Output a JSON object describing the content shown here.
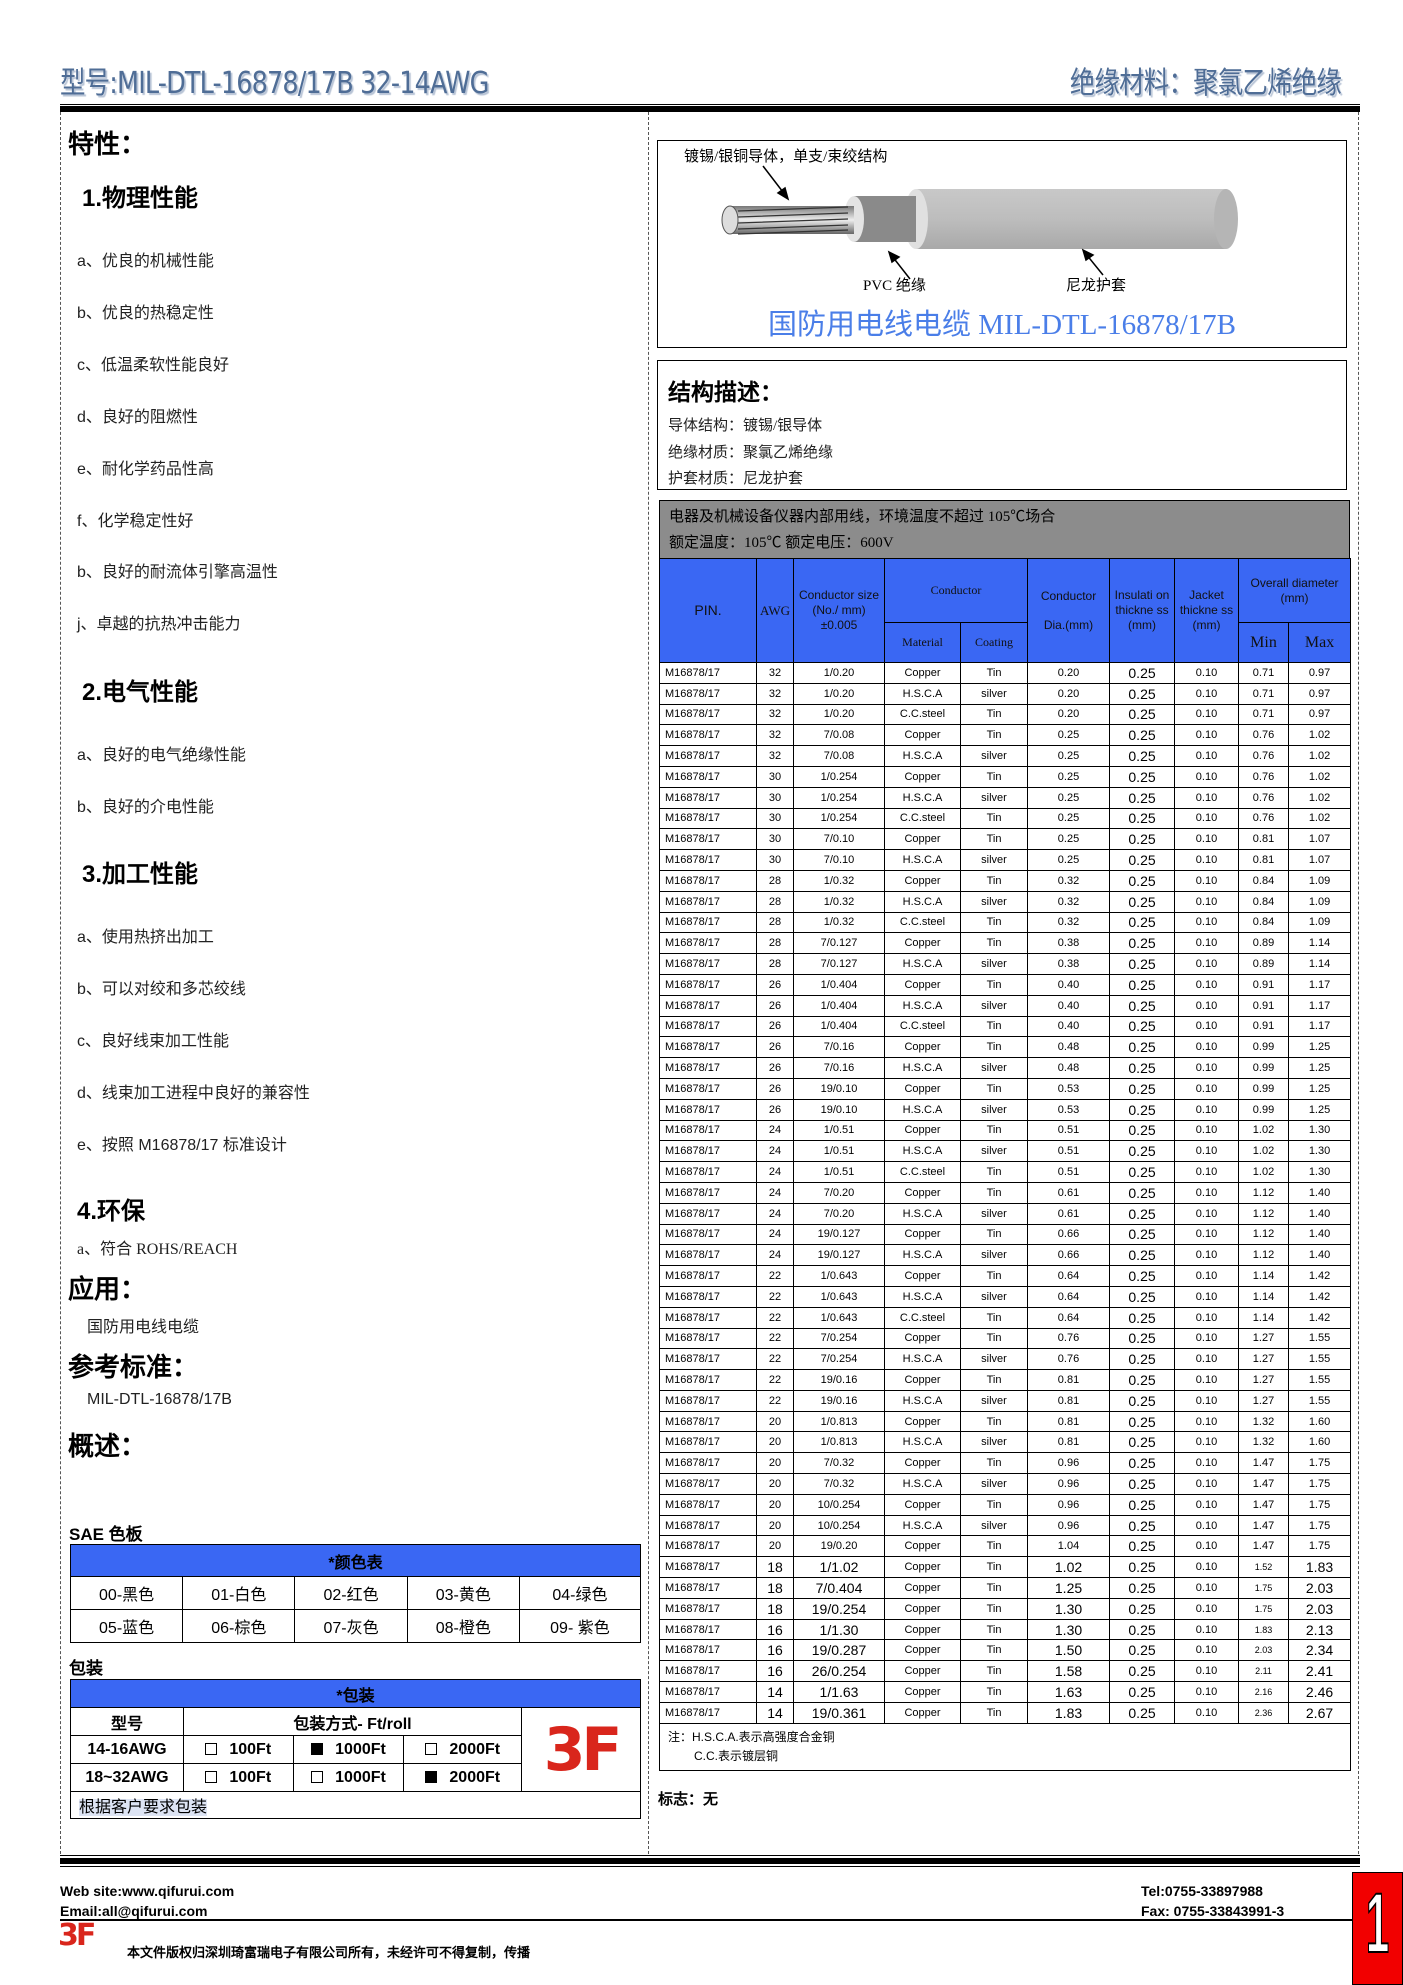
{
  "header": {
    "model": "型号:MIL-DTL-16878/17B 32-14AWG",
    "material": "绝缘材料：聚氯乙烯绝缘"
  },
  "left": {
    "features_title": "特性：",
    "sections": [
      {
        "title": "1.物理性能",
        "items": [
          "a、优良的机械性能",
          "b、优良的热稳定性",
          "c、低温柔软性能良好",
          "d、良好的阻燃性",
          "e、耐化学药品性高",
          "f、化学稳定性好",
          "b、良好的耐流体引擎高温性",
          "j、卓越的抗热冲击能力"
        ]
      },
      {
        "title": "2.电气性能",
        "items": [
          "a、良好的电气绝缘性能",
          "b、良好的介电性能"
        ]
      },
      {
        "title": "3.加工性能",
        "items": [
          "a、使用热挤出加工",
          "b、可以对绞和多芯绞线",
          "c、良好线束加工性能",
          "d、线束加工进程中良好的兼容性",
          "e、按照 M16878/17 标准设计"
        ]
      },
      {
        "title": "4.环保",
        "items": [
          "a、符合 ROHS/REACH"
        ]
      }
    ],
    "application_title": "应用：",
    "application": "国防用电线电缆",
    "standard_title": "参考标准：",
    "standard": "MIL-DTL-16878/17B",
    "overview_title": "概述：",
    "color_board_title": "SAE 色板",
    "color_table": {
      "header": "*颜色表",
      "rows": [
        [
          "00-黑色",
          "01-白色",
          "02-红色",
          "03-黄色",
          "04-绿色"
        ],
        [
          "05-蓝色",
          "06-棕色",
          "07-灰色",
          "08-橙色",
          "09- 紫色"
        ]
      ]
    },
    "packing_title": "包装",
    "packing_table": {
      "header": "*包装",
      "col_model": "型号",
      "col_method": "包装方式- Ft/roll",
      "rows": [
        {
          "model": "14-16AWG",
          "options": [
            {
              "label": "100Ft",
              "checked": false
            },
            {
              "label": "1000Ft",
              "checked": true
            },
            {
              "label": "2000Ft",
              "checked": false
            }
          ]
        },
        {
          "model": "18~32AWG",
          "options": [
            {
              "label": "100Ft",
              "checked": false
            },
            {
              "label": "1000Ft",
              "checked": false
            },
            {
              "label": "2000Ft",
              "checked": true
            }
          ]
        }
      ],
      "note": "根据客户要求包装",
      "logo": "3F"
    }
  },
  "diagram": {
    "conductor_label": "镀锡/银铜导体，单支/束绞结构",
    "insulation_label": "PVC  绝缘",
    "jacket_label": "尼龙护套",
    "title": "国防用电线电缆  MIL-DTL-16878/17B"
  },
  "structure": {
    "title": "结构描述：",
    "lines": [
      "导体结构：镀锡/银导体",
      "绝缘材质：聚氯乙烯绝缘",
      "护套材质：尼龙护套"
    ]
  },
  "usage": {
    "line1": "电器及机械设备仪器内部用线，环境温度不超过  105℃场合",
    "line2": "额定温度：105℃  额定电压：600V"
  },
  "spec_table": {
    "headers": {
      "pin": "PIN.",
      "awg": "AWG",
      "size": "Conductor size (No./ mm) ±0.005",
      "conductor": "Conductor",
      "material": "Material",
      "coating": "Coating",
      "dia": "Conductor",
      "dia2": "Dia.(mm)",
      "insulation": "Insulati on thickne ss (mm)",
      "jacket": "Jacket thickne ss (mm)",
      "overall": "Overall diameter (mm)",
      "min": "Min",
      "max": "Max"
    },
    "rows": [
      [
        "M16878/17",
        "32",
        "1/0.20",
        "Copper",
        "Tin",
        "0.20",
        "0.25",
        "0.10",
        "0.71",
        "0.97"
      ],
      [
        "M16878/17",
        "32",
        "1/0.20",
        "H.S.C.A",
        "silver",
        "0.20",
        "0.25",
        "0.10",
        "0.71",
        "0.97"
      ],
      [
        "M16878/17",
        "32",
        "1/0.20",
        "C.C.steel",
        "Tin",
        "0.20",
        "0.25",
        "0.10",
        "0.71",
        "0.97"
      ],
      [
        "M16878/17",
        "32",
        "7/0.08",
        "Copper",
        "Tin",
        "0.25",
        "0.25",
        "0.10",
        "0.76",
        "1.02"
      ],
      [
        "M16878/17",
        "32",
        "7/0.08",
        "H.S.C.A",
        "silver",
        "0.25",
        "0.25",
        "0.10",
        "0.76",
        "1.02"
      ],
      [
        "M16878/17",
        "30",
        "1/0.254",
        "Copper",
        "Tin",
        "0.25",
        "0.25",
        "0.10",
        "0.76",
        "1.02"
      ],
      [
        "M16878/17",
        "30",
        "1/0.254",
        "H.S.C.A",
        "silver",
        "0.25",
        "0.25",
        "0.10",
        "0.76",
        "1.02"
      ],
      [
        "M16878/17",
        "30",
        "1/0.254",
        "C.C.steel",
        "Tin",
        "0.25",
        "0.25",
        "0.10",
        "0.76",
        "1.02"
      ],
      [
        "M16878/17",
        "30",
        "7/0.10",
        "Copper",
        "Tin",
        "0.25",
        "0.25",
        "0.10",
        "0.81",
        "1.07"
      ],
      [
        "M16878/17",
        "30",
        "7/0.10",
        "H.S.C.A",
        "silver",
        "0.25",
        "0.25",
        "0.10",
        "0.81",
        "1.07"
      ],
      [
        "M16878/17",
        "28",
        "1/0.32",
        "Copper",
        "Tin",
        "0.32",
        "0.25",
        "0.10",
        "0.84",
        "1.09"
      ],
      [
        "M16878/17",
        "28",
        "1/0.32",
        "H.S.C.A",
        "silver",
        "0.32",
        "0.25",
        "0.10",
        "0.84",
        "1.09"
      ],
      [
        "M16878/17",
        "28",
        "1/0.32",
        "C.C.steel",
        "Tin",
        "0.32",
        "0.25",
        "0.10",
        "0.84",
        "1.09"
      ],
      [
        "M16878/17",
        "28",
        "7/0.127",
        "Copper",
        "Tin",
        "0.38",
        "0.25",
        "0.10",
        "0.89",
        "1.14"
      ],
      [
        "M16878/17",
        "28",
        "7/0.127",
        "H.S.C.A",
        "silver",
        "0.38",
        "0.25",
        "0.10",
        "0.89",
        "1.14"
      ],
      [
        "M16878/17",
        "26",
        "1/0.404",
        "Copper",
        "Tin",
        "0.40",
        "0.25",
        "0.10",
        "0.91",
        "1.17"
      ],
      [
        "M16878/17",
        "26",
        "1/0.404",
        "H.S.C.A",
        "silver",
        "0.40",
        "0.25",
        "0.10",
        "0.91",
        "1.17"
      ],
      [
        "M16878/17",
        "26",
        "1/0.404",
        "C.C.steel",
        "Tin",
        "0.40",
        "0.25",
        "0.10",
        "0.91",
        "1.17"
      ],
      [
        "M16878/17",
        "26",
        "7/0.16",
        "Copper",
        "Tin",
        "0.48",
        "0.25",
        "0.10",
        "0.99",
        "1.25"
      ],
      [
        "M16878/17",
        "26",
        "7/0.16",
        "H.S.C.A",
        "silver",
        "0.48",
        "0.25",
        "0.10",
        "0.99",
        "1.25"
      ],
      [
        "M16878/17",
        "26",
        "19/0.10",
        "Copper",
        "Tin",
        "0.53",
        "0.25",
        "0.10",
        "0.99",
        "1.25"
      ],
      [
        "M16878/17",
        "26",
        "19/0.10",
        "H.S.C.A",
        "silver",
        "0.53",
        "0.25",
        "0.10",
        "0.99",
        "1.25"
      ],
      [
        "M16878/17",
        "24",
        "1/0.51",
        "Copper",
        "Tin",
        "0.51",
        "0.25",
        "0.10",
        "1.02",
        "1.30"
      ],
      [
        "M16878/17",
        "24",
        "1/0.51",
        "H.S.C.A",
        "silver",
        "0.51",
        "0.25",
        "0.10",
        "1.02",
        "1.30"
      ],
      [
        "M16878/17",
        "24",
        "1/0.51",
        "C.C.steel",
        "Tin",
        "0.51",
        "0.25",
        "0.10",
        "1.02",
        "1.30"
      ],
      [
        "M16878/17",
        "24",
        "7/0.20",
        "Copper",
        "Tin",
        "0.61",
        "0.25",
        "0.10",
        "1.12",
        "1.40"
      ],
      [
        "M16878/17",
        "24",
        "7/0.20",
        "H.S.C.A",
        "silver",
        "0.61",
        "0.25",
        "0.10",
        "1.12",
        "1.40"
      ],
      [
        "M16878/17",
        "24",
        "19/0.127",
        "Copper",
        "Tin",
        "0.66",
        "0.25",
        "0.10",
        "1.12",
        "1.40"
      ],
      [
        "M16878/17",
        "24",
        "19/0.127",
        "H.S.C.A",
        "silver",
        "0.66",
        "0.25",
        "0.10",
        "1.12",
        "1.40"
      ],
      [
        "M16878/17",
        "22",
        "1/0.643",
        "Copper",
        "Tin",
        "0.64",
        "0.25",
        "0.10",
        "1.14",
        "1.42"
      ],
      [
        "M16878/17",
        "22",
        "1/0.643",
        "H.S.C.A",
        "silver",
        "0.64",
        "0.25",
        "0.10",
        "1.14",
        "1.42"
      ],
      [
        "M16878/17",
        "22",
        "1/0.643",
        "C.C.steel",
        "Tin",
        "0.64",
        "0.25",
        "0.10",
        "1.14",
        "1.42"
      ],
      [
        "M16878/17",
        "22",
        "7/0.254",
        "Copper",
        "Tin",
        "0.76",
        "0.25",
        "0.10",
        "1.27",
        "1.55"
      ],
      [
        "M16878/17",
        "22",
        "7/0.254",
        "H.S.C.A",
        "silver",
        "0.76",
        "0.25",
        "0.10",
        "1.27",
        "1.55"
      ],
      [
        "M16878/17",
        "22",
        "19/0.16",
        "Copper",
        "Tin",
        "0.81",
        "0.25",
        "0.10",
        "1.27",
        "1.55"
      ],
      [
        "M16878/17",
        "22",
        "19/0.16",
        "H.S.C.A",
        "silver",
        "0.81",
        "0.25",
        "0.10",
        "1.27",
        "1.55"
      ],
      [
        "M16878/17",
        "20",
        "1/0.813",
        "Copper",
        "Tin",
        "0.81",
        "0.25",
        "0.10",
        "1.32",
        "1.60"
      ],
      [
        "M16878/17",
        "20",
        "1/0.813",
        "H.S.C.A",
        "silver",
        "0.81",
        "0.25",
        "0.10",
        "1.32",
        "1.60"
      ],
      [
        "M16878/17",
        "20",
        "7/0.32",
        "Copper",
        "Tin",
        "0.96",
        "0.25",
        "0.10",
        "1.47",
        "1.75"
      ],
      [
        "M16878/17",
        "20",
        "7/0.32",
        "H.S.C.A",
        "silver",
        "0.96",
        "0.25",
        "0.10",
        "1.47",
        "1.75"
      ],
      [
        "M16878/17",
        "20",
        "10/0.254",
        "Copper",
        "Tin",
        "0.96",
        "0.25",
        "0.10",
        "1.47",
        "1.75"
      ],
      [
        "M16878/17",
        "20",
        "10/0.254",
        "H.S.C.A",
        "silver",
        "0.96",
        "0.25",
        "0.10",
        "1.47",
        "1.75"
      ],
      [
        "M16878/17",
        "20",
        "19/0.20",
        "Copper",
        "Tin",
        "1.04",
        "0.25",
        "0.10",
        "1.47",
        "1.75"
      ],
      [
        "M16878/17",
        "18",
        "1/1.02",
        "Copper",
        "Tin",
        "1.02",
        "0.25",
        "0.10",
        "1.52",
        "1.83"
      ],
      [
        "M16878/17",
        "18",
        "7/0.404",
        "Copper",
        "Tin",
        "1.25",
        "0.25",
        "0.10",
        "1.75",
        "2.03"
      ],
      [
        "M16878/17",
        "18",
        "19/0.254",
        "Copper",
        "Tin",
        "1.30",
        "0.25",
        "0.10",
        "1.75",
        "2.03"
      ],
      [
        "M16878/17",
        "16",
        "1/1.30",
        "Copper",
        "Tin",
        "1.30",
        "0.25",
        "0.10",
        "1.83",
        "2.13"
      ],
      [
        "M16878/17",
        "16",
        "19/0.287",
        "Copper",
        "Tin",
        "1.50",
        "0.25",
        "0.10",
        "2.03",
        "2.34"
      ],
      [
        "M16878/17",
        "16",
        "26/0.254",
        "Copper",
        "Tin",
        "1.58",
        "0.25",
        "0.10",
        "2.11",
        "2.41"
      ],
      [
        "M16878/17",
        "14",
        "1/1.63",
        "Copper",
        "Tin",
        "1.63",
        "0.25",
        "0.10",
        "2.16",
        "2.46"
      ],
      [
        "M16878/17",
        "14",
        "19/0.361",
        "Copper",
        "Tin",
        "1.83",
        "0.25",
        "0.10",
        "2.36",
        "2.67"
      ]
    ],
    "note1": "注：H.S.C.A.表示高强度合金铜",
    "note2": "C.C.表示镀层铜"
  },
  "mark": "标志：无",
  "footer": {
    "website": "Web site:www.qifurui.com",
    "email": "Email:all@qifurui.com",
    "tel": "Tel:0755-33897988",
    "fax": "Fax: 0755-33843991-3",
    "copyright": "本文件版权归深圳琦富瑞电子有限公司所有，未经许可不得复制，传播",
    "logo": "3F",
    "page_number": "1"
  },
  "colors": {
    "table_blue": "#3a67f3",
    "title_blue": "#4a7ee8",
    "logo_red": "#d9261c",
    "header_text": "#4f6d96",
    "usage_gray": "#8c8c8c"
  }
}
